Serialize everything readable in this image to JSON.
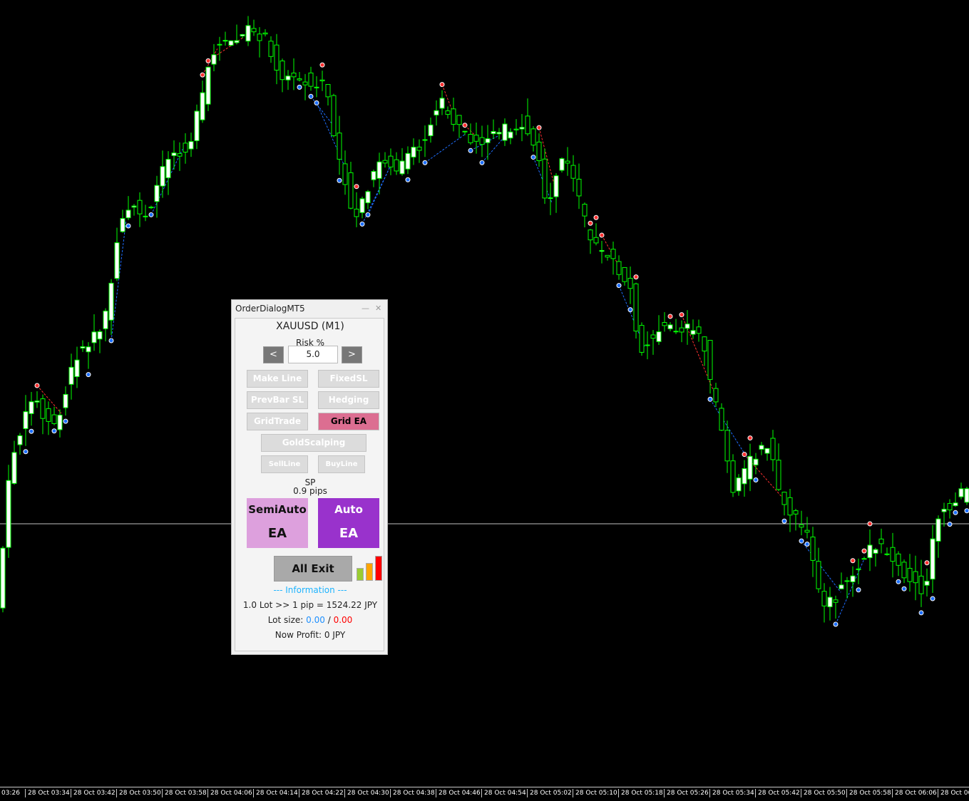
{
  "colors": {
    "background": "#000000",
    "bull": "#00ff00",
    "bear": "#00ff00",
    "body_fill": "#ffffff",
    "buy_line": "#1e6fff",
    "sell_line": "#ff3030",
    "grid_ea": "#dc6e91",
    "semiauto": "#dda0dd",
    "auto": "#9932cc",
    "info": "#1eb4ff",
    "lot_buy": "#1e90ff",
    "lot_sell": "#ff0000"
  },
  "time_axis": [
    "03:26",
    "28 Oct 03:34",
    "28 Oct 03:42",
    "28 Oct 03:50",
    "28 Oct 03:58",
    "28 Oct 04:06",
    "28 Oct 04:14",
    "28 Oct 04:22",
    "28 Oct 04:30",
    "28 Oct 04:38",
    "28 Oct 04:46",
    "28 Oct 04:54",
    "28 Oct 05:02",
    "28 Oct 05:10",
    "28 Oct 05:18",
    "28 Oct 05:26",
    "28 Oct 05:34",
    "28 Oct 05:42",
    "28 Oct 05:50",
    "28 Oct 05:58",
    "28 Oct 06:06",
    "28 Oct 06:"
  ],
  "dialog": {
    "title": "OrderDialogMT5",
    "minimize": "—",
    "close": "✕",
    "symbol": "XAUUSD (M1)",
    "risk_label": "Risk %",
    "risk_value": "5.0",
    "dec": "<",
    "inc": ">",
    "buttons": {
      "make_line": "Make Line",
      "fixed_sl": "FixedSL",
      "prevbar_sl": "PrevBar SL",
      "hedging": "Hedging",
      "grid_trade": "GridTrade",
      "grid_ea": "Grid EA",
      "gold_scalping": "GoldScalping",
      "sell_line": "SellLine",
      "buy_line": "BuyLine"
    },
    "spread_label": "SP",
    "spread_value": "0.9 pips",
    "semiauto_1": "SemiAuto",
    "semiauto_2": "EA",
    "auto_1": "Auto",
    "auto_2": "EA",
    "all_exit": "All Exit",
    "info_header": "--- Information ---",
    "pip_value": "1.0 Lot >> 1 pip = 1524.22 JPY",
    "lot_label": "Lot size:",
    "lot_buy": "0.00",
    "lot_sep": "/",
    "lot_sell": "0.00",
    "profit_label": "Now Profit:",
    "profit_value": "0 JPY"
  }
}
